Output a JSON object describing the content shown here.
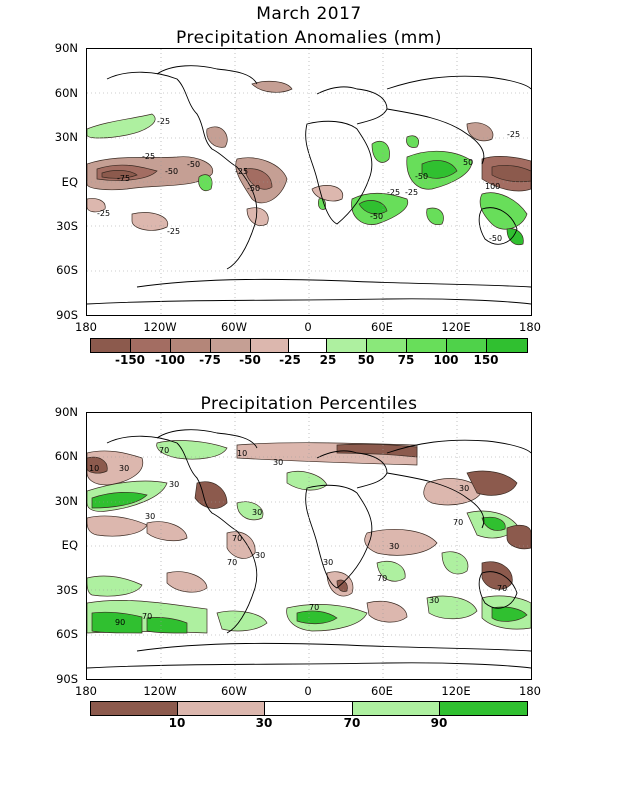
{
  "header": {
    "month_year": "March 2017"
  },
  "anomaly_panel": {
    "title": "Precipitation Anomalies (mm)",
    "lat_labels": [
      "90N",
      "60N",
      "30N",
      "EQ",
      "30S",
      "60S",
      "90S"
    ],
    "lon_labels": [
      "180",
      "120W",
      "60W",
      "0",
      "60E",
      "120E",
      "180"
    ],
    "contour_labels": [
      "-25",
      "-50",
      "-75",
      "-50",
      "-25",
      "-25",
      "-25",
      "-50",
      "-25",
      "-25",
      "-25",
      "-50",
      "-25",
      "-50",
      "50",
      "100",
      "-50"
    ],
    "colorbar": {
      "labels": [
        "-150",
        "-100",
        "-75",
        "-50",
        "-25",
        "25",
        "50",
        "75",
        "100",
        "150"
      ],
      "colors": [
        "#8c5a4d",
        "#a36d62",
        "#b48679",
        "#c59f94",
        "#dcb7ae",
        "#ffffff",
        "#aef0a0",
        "#8ae87a",
        "#68de5a",
        "#4fd24a",
        "#30c030"
      ]
    }
  },
  "percentile_panel": {
    "title": "Precipitation Percentiles",
    "lat_labels": [
      "90N",
      "60N",
      "30N",
      "EQ",
      "30S",
      "60S",
      "90S"
    ],
    "lon_labels": [
      "180",
      "120W",
      "60W",
      "0",
      "60E",
      "120E",
      "180"
    ],
    "contour_labels": [
      "10",
      "30",
      "70",
      "30",
      "10",
      "30",
      "30",
      "30",
      "70",
      "30",
      "70",
      "30",
      "70",
      "30",
      "70",
      "90",
      "70",
      "30",
      "70",
      "30",
      "70"
    ],
    "colorbar": {
      "labels": [
        "10",
        "30",
        "70",
        "90"
      ],
      "colors": [
        "#8c5a4d",
        "#dcb7ae",
        "#ffffff",
        "#aef0a0",
        "#30c030"
      ]
    }
  }
}
